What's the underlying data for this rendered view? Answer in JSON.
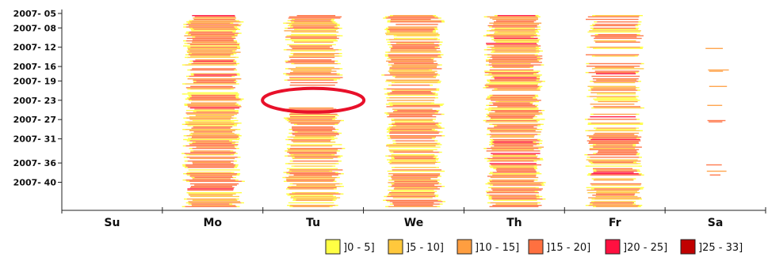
{
  "chart_data": {
    "type": "heatmap",
    "title": "",
    "xlabel": "",
    "ylabel": "",
    "x_categories": [
      "Su",
      "Mo",
      "Tu",
      "We",
      "Th",
      "Fr",
      "Sa"
    ],
    "y_tick_labels": [
      "2007- 05",
      "2007- 08",
      "2007- 12",
      "2007- 16",
      "2007- 19",
      "2007- 23",
      "2007- 27",
      "2007- 31",
      "2007- 36",
      "2007- 40"
    ],
    "y_tick_weeks": [
      5,
      8,
      12,
      16,
      19,
      23,
      27,
      31,
      36,
      40
    ],
    "y_range_weeks": [
      5,
      45
    ],
    "legend": {
      "placement": "bottom-right",
      "bins": [
        {
          "label": "]0 - 5]",
          "color": "#ffff44"
        },
        {
          "label": "]5 - 10]",
          "color": "#ffc83c"
        },
        {
          "label": "]10 - 15]",
          "color": "#ff9e40"
        },
        {
          "label": "]15 - 20]",
          "color": "#ff7040"
        },
        {
          "label": "]20 - 25]",
          "color": "#ff1040"
        },
        {
          "label": "]25 - 33]",
          "color": "#c00000"
        }
      ]
    },
    "day_activity": [
      {
        "day": "Su",
        "present": false,
        "intensity": 0
      },
      {
        "day": "Mo",
        "present": true,
        "intensity": 0.9
      },
      {
        "day": "Tu",
        "present": true,
        "intensity": 0.85
      },
      {
        "day": "We",
        "present": true,
        "intensity": 0.85
      },
      {
        "day": "Th",
        "present": true,
        "intensity": 0.9
      },
      {
        "day": "Fr",
        "present": true,
        "intensity": 0.6
      },
      {
        "day": "Sa",
        "present": true,
        "intensity": 0.08
      }
    ],
    "gaps": [
      {
        "day": "Mo",
        "weeks": [
          [
            15.8,
            16.3
          ],
          [
            20.8,
            21.3
          ]
        ]
      },
      {
        "day": "Tu",
        "weeks": [
          [
            15.5,
            16.0
          ],
          [
            19.8,
            24.2
          ]
        ]
      },
      {
        "day": "We",
        "weeks": [
          [
            37.6,
            38.0
          ]
        ]
      },
      {
        "day": "Th",
        "weeks": [
          [
            21.0,
            21.8
          ]
        ]
      }
    ],
    "annotations": [
      {
        "shape": "ellipse",
        "color": "#e8102a",
        "center_day": 2.5,
        "center_week": 23
      }
    ],
    "grid": false
  }
}
